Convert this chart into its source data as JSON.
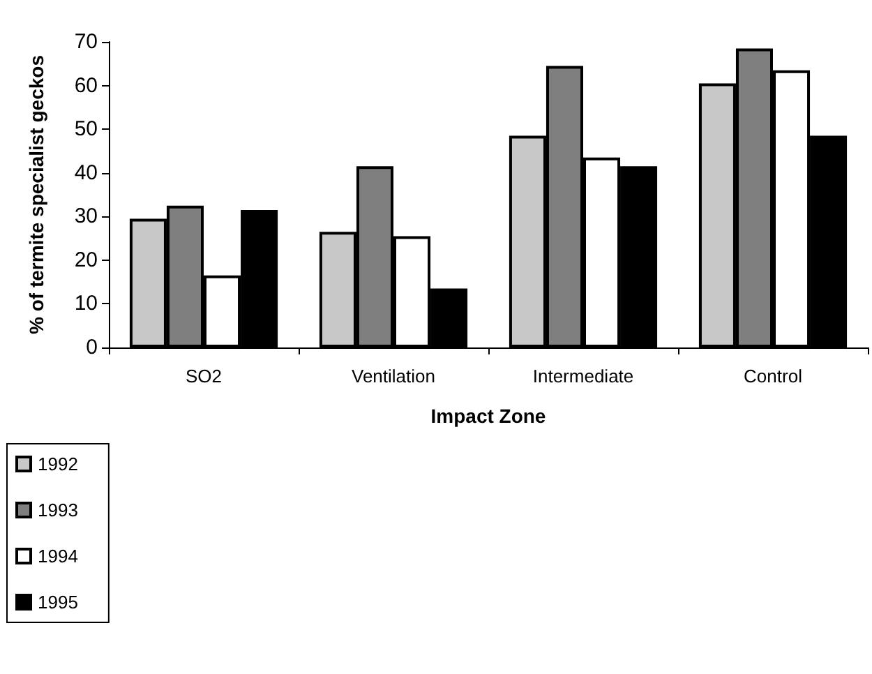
{
  "chart_data": {
    "type": "bar",
    "xlabel": "Impact Zone",
    "ylabel": "% of termite specialist geckos",
    "categories": [
      "SO2",
      "Ventilation",
      "Intermediate",
      "Control"
    ],
    "series": [
      {
        "name": "1992",
        "color": "#c8c8c8",
        "values": [
          29.5,
          26.5,
          48.5,
          60.5
        ]
      },
      {
        "name": "1993",
        "color": "#7f7f7f",
        "values": [
          32.5,
          41.5,
          64.5,
          68.5
        ]
      },
      {
        "name": "1994",
        "color": "#ffffff",
        "values": [
          16.5,
          25.5,
          43.5,
          63.5
        ]
      },
      {
        "name": "1995",
        "color": "#000000",
        "values": [
          31.5,
          13.5,
          41.5,
          48.5
        ]
      }
    ],
    "ylim": [
      0,
      70
    ],
    "yticks": [
      0,
      10,
      20,
      30,
      40,
      50,
      60,
      70
    ],
    "grid": false,
    "legend": "bottom left"
  }
}
